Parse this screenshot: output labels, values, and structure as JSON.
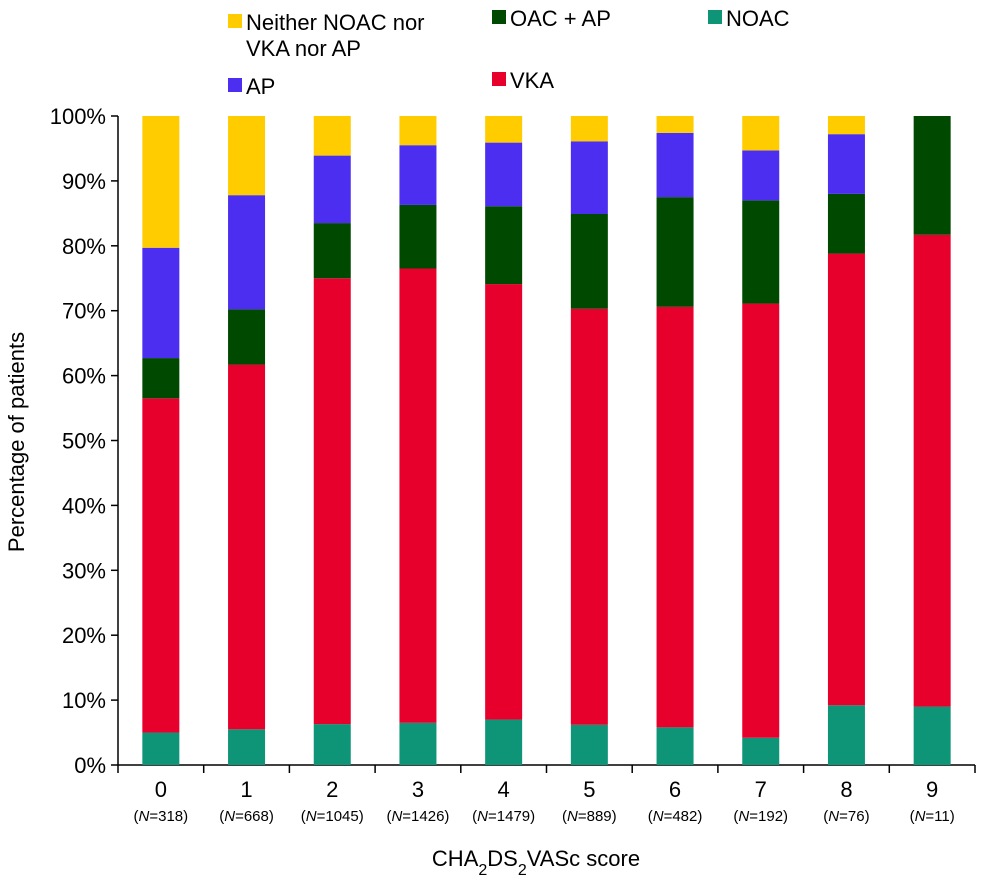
{
  "chart_data": {
    "type": "bar",
    "stacked": true,
    "title": "",
    "xlabel": {
      "prefix": "CHA",
      "sub1": "2",
      "mid": "DS",
      "sub2": "2",
      "suffix": "VASc score"
    },
    "ylabel": "Percentage of patients",
    "ylim": [
      0,
      100
    ],
    "yticks": [
      "0%",
      "10%",
      "20%",
      "30%",
      "40%",
      "50%",
      "60%",
      "70%",
      "80%",
      "90%",
      "100%"
    ],
    "categories": [
      "0",
      "1",
      "2",
      "3",
      "4",
      "5",
      "6",
      "7",
      "8",
      "9"
    ],
    "n_labels": [
      "318",
      "668",
      "1045",
      "1426",
      "1479",
      "889",
      "482",
      "192",
      "76",
      "11"
    ],
    "n_prefix": "N",
    "series": [
      {
        "name": "NOAC",
        "key": "noac",
        "color": "#0e9477",
        "values": [
          5.0,
          5.5,
          6.3,
          6.5,
          7.0,
          6.2,
          5.8,
          4.2,
          9.2,
          9.0
        ]
      },
      {
        "name": "VKA",
        "key": "vka",
        "color": "#e8002d",
        "values": [
          51.5,
          56.2,
          68.7,
          70.0,
          67.1,
          64.1,
          64.8,
          66.9,
          69.6,
          72.7
        ]
      },
      {
        "name": "OAC + AP",
        "key": "oac_ap",
        "color": "#004900",
        "values": [
          6.2,
          8.5,
          8.5,
          9.8,
          12.0,
          14.6,
          16.9,
          15.9,
          9.2,
          18.3
        ]
      },
      {
        "name": "AP",
        "key": "ap",
        "color": "#4b2ef0",
        "values": [
          17.0,
          17.6,
          10.4,
          9.2,
          9.8,
          11.2,
          9.9,
          7.7,
          9.2,
          0.0
        ]
      },
      {
        "name": "Neither NOAC nor VKA nor AP",
        "key": "neither",
        "color": "#ffcc00",
        "values": [
          20.3,
          12.2,
          6.1,
          4.5,
          4.1,
          3.9,
          2.6,
          5.3,
          2.8,
          0.0
        ]
      }
    ],
    "legend": [
      {
        "key": "neither",
        "lines": [
          "Neither NOAC nor",
          "VKA nor AP"
        ]
      },
      {
        "key": "oac_ap",
        "lines": [
          "OAC + AP"
        ]
      },
      {
        "key": "noac",
        "lines": [
          "NOAC"
        ]
      },
      {
        "key": "ap",
        "lines": [
          "AP"
        ]
      },
      {
        "key": "vka",
        "lines": [
          "VKA"
        ]
      }
    ],
    "legend_position": "top"
  }
}
